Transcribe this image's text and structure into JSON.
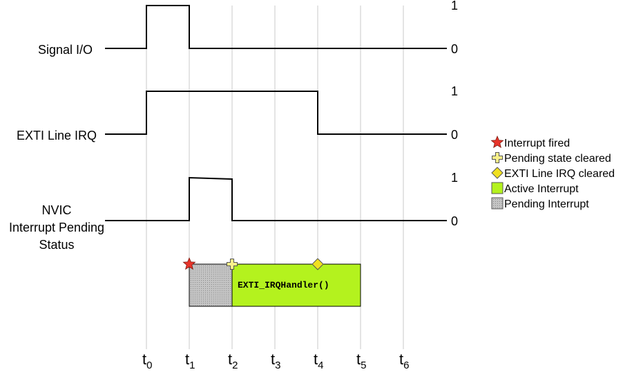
{
  "signals": [
    {
      "label_lines": [
        "Signal I/O"
      ],
      "high_label": "1",
      "low_label": "0",
      "high_from": "t0",
      "high_to": "t1",
      "pre_high_peak": false
    },
    {
      "label_lines": [
        "EXTI Line IRQ"
      ],
      "high_label": "1",
      "low_label": "0",
      "high_from": "t0",
      "high_to": "t4",
      "pre_high_peak": false
    },
    {
      "label_lines": [
        "NVIC",
        "Interrupt Pending",
        "Status"
      ],
      "high_label": "1",
      "low_label": "0",
      "high_from": "t1",
      "high_to": "t2",
      "pre_high_peak": false
    }
  ],
  "time_ticks": [
    {
      "base": "t",
      "sub": "0"
    },
    {
      "base": "t",
      "sub": "1"
    },
    {
      "base": "t",
      "sub": "2"
    },
    {
      "base": "t",
      "sub": "3"
    },
    {
      "base": "t",
      "sub": "4"
    },
    {
      "base": "t",
      "sub": "5"
    },
    {
      "base": "t",
      "sub": "6"
    }
  ],
  "execution": {
    "pending_from": "t1",
    "pending_to": "t2",
    "active_from": "t2",
    "active_to": "t5",
    "handler_label": "EXTI_IRQHandler()"
  },
  "markers": [
    {
      "type": "star",
      "at": "t1"
    },
    {
      "type": "cross",
      "at": "t2"
    },
    {
      "type": "diamond",
      "at": "t4"
    }
  ],
  "legend": [
    {
      "icon": "star",
      "label": "Interrupt fired"
    },
    {
      "icon": "cross",
      "label": "Pending state cleared"
    },
    {
      "icon": "diamond",
      "label": "EXTI Line IRQ cleared"
    },
    {
      "icon": "active-box",
      "label": "Active Interrupt"
    },
    {
      "icon": "pending-box",
      "label": "Pending Interrupt"
    }
  ],
  "colors": {
    "star": "#e8342a",
    "cross": "#f8f08a",
    "diamond": "#f0e020",
    "active": "#b4f21e",
    "pending": "#bcbcbc",
    "grid": "#c8c8c8"
  }
}
